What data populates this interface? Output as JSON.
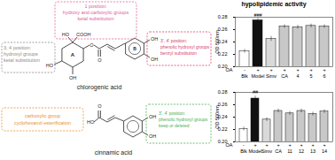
{
  "title": "hypolipidemic activity",
  "structures": [
    {
      "name": "chlorogenic acid",
      "ring_labels": [
        "A",
        "B"
      ],
      "atoms": [
        "HO",
        "COOH",
        "HO",
        "OH",
        "O",
        "O",
        "OH",
        "OH"
      ],
      "boxes": [
        {
          "lines": [
            "1 position:",
            "hydroxy and carboxylic groups",
            "ketal substitution"
          ],
          "color": "#e0609a"
        },
        {
          "lines": [
            "3, 4 position:",
            "hydroxyl groups",
            "ketal substitution"
          ],
          "color": "#8c8c8c"
        },
        {
          "lines": [
            "3', 4' position:",
            "phenolic hydroxyl groups",
            "benzyl substitution"
          ],
          "color": "#d9406e"
        }
      ]
    },
    {
      "name": "cinnamic acid",
      "ring_labels": [],
      "atoms": [
        "HO",
        "O",
        "OH",
        "OH"
      ],
      "boxes": [
        {
          "lines": [
            "carboxylic group",
            "cyclohexanol esterification"
          ],
          "color": "#e8902a"
        },
        {
          "lines": [
            "3', 4' position:",
            "phenolic hydroxyl groups",
            "keep or deleted"
          ],
          "color": "#4caf50"
        }
      ]
    }
  ],
  "chart_data": [
    {
      "type": "bar",
      "y_label": "OD 500nm",
      "categories": [
        "Blk",
        "Model",
        "Simv",
        "CA",
        "4",
        "5",
        "6"
      ],
      "values": [
        0.225,
        0.275,
        0.245,
        0.265,
        0.264,
        0.266,
        0.265
      ],
      "errors": [
        0.003,
        0.003,
        0.004,
        0.003,
        0.003,
        0.003,
        0.003
      ],
      "colors": [
        "#ffffff",
        "#111111",
        "#d9d9d9",
        "#c8c8c8",
        "#c8c8c8",
        "#c8c8c8",
        "#c8c8c8"
      ],
      "treatment": {
        "label": "OA",
        "signs": [
          "-",
          "+",
          "+",
          "+",
          "+",
          "+",
          "+"
        ]
      },
      "annotations": [
        {
          "category": "Model",
          "text": "###"
        }
      ],
      "ylim": [
        0.2,
        0.28
      ],
      "yticks": [
        {
          "value": 0.2,
          "label": "0.20"
        },
        {
          "value": 0.22,
          "label": "0.22"
        },
        {
          "value": 0.24,
          "label": "0.24"
        },
        {
          "value": 0.26,
          "label": "0.26"
        },
        {
          "value": 0.28,
          "label": "0.28"
        }
      ],
      "grid": false
    },
    {
      "type": "bar",
      "y_label": "OD 500nm",
      "categories": [
        "Blk",
        "Model",
        "Simv",
        "CA",
        "11",
        "12",
        "13",
        "14"
      ],
      "values": [
        0.221,
        0.27,
        0.236,
        0.25,
        0.246,
        0.25,
        0.245,
        0.249
      ],
      "errors": [
        0.003,
        0.004,
        0.003,
        0.003,
        0.003,
        0.003,
        0.003,
        0.003
      ],
      "colors": [
        "#ffffff",
        "#111111",
        "#d9d9d9",
        "#c8c8c8",
        "#c8c8c8",
        "#c8c8c8",
        "#c8c8c8",
        "#c8c8c8"
      ],
      "treatment": {
        "label": "OA",
        "signs": [
          "-",
          "+",
          "+",
          "+",
          "+",
          "+",
          "+",
          "+"
        ]
      },
      "annotations": [
        {
          "category": "Model",
          "text": "##"
        }
      ],
      "ylim": [
        0.2,
        0.28
      ],
      "yticks": [
        {
          "value": 0.2,
          "label": "0.20"
        },
        {
          "value": 0.22,
          "label": "0.22"
        },
        {
          "value": 0.24,
          "label": "0.24"
        },
        {
          "value": 0.26,
          "label": "0.26"
        },
        {
          "value": 0.28,
          "label": "0.28"
        }
      ],
      "grid": false
    }
  ]
}
